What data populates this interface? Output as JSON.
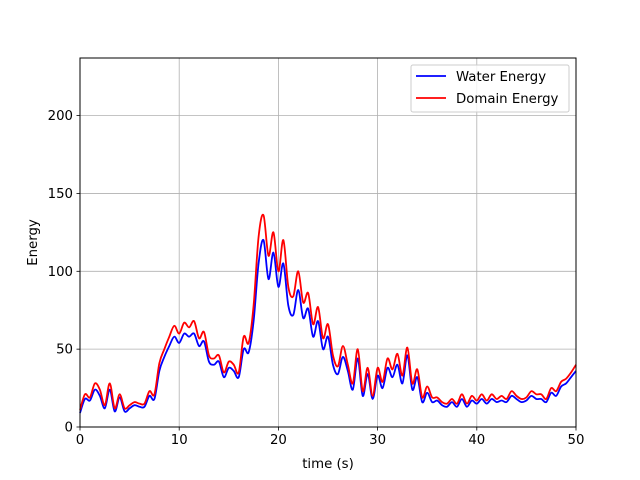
{
  "chart_data": {
    "type": "line",
    "title": "",
    "xlabel": "time (s)",
    "ylabel": "Energy",
    "xlim": [
      0,
      50
    ],
    "ylim": [
      0,
      237
    ],
    "xticks": [
      0,
      10,
      20,
      30,
      40,
      50
    ],
    "yticks": [
      0,
      50,
      100,
      150,
      200
    ],
    "grid": true,
    "legend_position": "upper right",
    "series": [
      {
        "name": "Water Energy",
        "color": "#0000ff",
        "x": [
          0,
          0.5,
          1,
          1.5,
          2,
          2.5,
          3,
          3.5,
          4,
          4.5,
          5,
          5.5,
          6,
          6.5,
          7,
          7.5,
          8,
          8.5,
          9,
          9.5,
          10,
          10.5,
          11,
          11.5,
          12,
          12.5,
          13,
          13.5,
          14,
          14.5,
          15,
          15.5,
          16,
          16.5,
          17,
          17.5,
          18,
          18.5,
          19,
          19.5,
          20,
          20.5,
          21,
          21.5,
          22,
          22.5,
          23,
          23.5,
          24,
          24.5,
          25,
          25.5,
          26,
          26.5,
          27,
          27.5,
          28,
          28.5,
          29,
          29.5,
          30,
          30.5,
          31,
          31.5,
          32,
          32.5,
          33,
          33.5,
          34,
          34.5,
          35,
          35.5,
          36,
          36.5,
          37,
          37.5,
          38,
          38.5,
          39,
          39.5,
          40,
          40.5,
          41,
          41.5,
          42,
          42.5,
          43,
          43.5,
          44,
          44.5,
          45,
          45.5,
          46,
          46.5,
          47,
          47.5,
          48,
          48.5,
          49,
          49.5,
          50
        ],
        "values": [
          9,
          18,
          17,
          24,
          20,
          12,
          24,
          10,
          19,
          10,
          12,
          14,
          13,
          13,
          20,
          18,
          36,
          45,
          52,
          58,
          54,
          60,
          58,
          60,
          52,
          55,
          42,
          40,
          42,
          32,
          38,
          36,
          32,
          50,
          48,
          68,
          105,
          120,
          95,
          112,
          90,
          105,
          78,
          72,
          88,
          70,
          76,
          58,
          68,
          50,
          58,
          40,
          34,
          45,
          36,
          24,
          44,
          20,
          34,
          18,
          33,
          25,
          38,
          32,
          40,
          28,
          46,
          24,
          32,
          16,
          22,
          16,
          17,
          14,
          13,
          16,
          13,
          18,
          13,
          17,
          15,
          18,
          15,
          18,
          16,
          17,
          16,
          20,
          18,
          16,
          17,
          20,
          18,
          18,
          16,
          22,
          20,
          26,
          28,
          32,
          36
        ]
      },
      {
        "name": "Domain Energy",
        "color": "#ff0000",
        "x": [
          0,
          0.5,
          1,
          1.5,
          2,
          2.5,
          3,
          3.5,
          4,
          4.5,
          5,
          5.5,
          6,
          6.5,
          7,
          7.5,
          8,
          8.5,
          9,
          9.5,
          10,
          10.5,
          11,
          11.5,
          12,
          12.5,
          13,
          13.5,
          14,
          14.5,
          15,
          15.5,
          16,
          16.5,
          17,
          17.5,
          18,
          18.5,
          19,
          19.5,
          20,
          20.5,
          21,
          21.5,
          22,
          22.5,
          23,
          23.5,
          24,
          24.5,
          25,
          25.5,
          26,
          26.5,
          27,
          27.5,
          28,
          28.5,
          29,
          29.5,
          30,
          30.5,
          31,
          31.5,
          32,
          32.5,
          33,
          33.5,
          34,
          34.5,
          35,
          35.5,
          36,
          36.5,
          37,
          37.5,
          38,
          38.5,
          39,
          39.5,
          40,
          40.5,
          41,
          41.5,
          42,
          42.5,
          43,
          43.5,
          44,
          44.5,
          45,
          45.5,
          46,
          46.5,
          47,
          47.5,
          48,
          48.5,
          49,
          49.5,
          50
        ],
        "values": [
          11,
          21,
          19,
          28,
          24,
          14,
          28,
          12,
          21,
          12,
          14,
          16,
          15,
          15,
          23,
          21,
          41,
          50,
          58,
          65,
          60,
          67,
          64,
          68,
          57,
          61,
          46,
          44,
          46,
          35,
          42,
          40,
          35,
          58,
          54,
          78,
          122,
          136,
          110,
          125,
          100,
          120,
          90,
          84,
          100,
          80,
          86,
          66,
          77,
          57,
          66,
          46,
          39,
          52,
          40,
          28,
          50,
          23,
          38,
          20,
          38,
          29,
          44,
          37,
          47,
          33,
          51,
          28,
          37,
          19,
          26,
          19,
          19,
          16,
          15,
          18,
          15,
          21,
          15,
          20,
          17,
          21,
          17,
          21,
          18,
          20,
          18,
          23,
          20,
          18,
          19,
          23,
          21,
          21,
          18,
          25,
          23,
          29,
          31,
          35,
          40
        ]
      }
    ]
  }
}
